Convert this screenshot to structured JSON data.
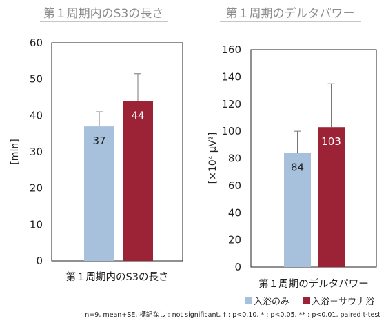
{
  "chart_data": [
    {
      "type": "bar",
      "title": "第１周期内のS3の長さ",
      "categories": [
        "第１周期内のS3の長さ"
      ],
      "ylabel": "[min]",
      "ylim": [
        0,
        60
      ],
      "yticks": [
        0,
        10,
        20,
        30,
        40,
        50,
        60
      ],
      "series": [
        {
          "name": "入浴のみ",
          "values": [
            37
          ],
          "error": [
            4
          ],
          "color": "#a7c0dc"
        },
        {
          "name": "入浴＋サウナ浴",
          "values": [
            44
          ],
          "error": [
            7.5
          ],
          "color": "#9b2335"
        }
      ],
      "data_labels": [
        "37",
        "44"
      ]
    },
    {
      "type": "bar",
      "title": "第１周期のデルタパワー",
      "categories": [
        "第１周期のデルタパワー"
      ],
      "ylabel": "[×10⁴ μV²]",
      "ylim": [
        0,
        160
      ],
      "yticks": [
        0,
        20,
        40,
        60,
        80,
        100,
        120,
        140,
        160
      ],
      "series": [
        {
          "name": "入浴のみ",
          "values": [
            84
          ],
          "error": [
            16
          ],
          "color": "#a7c0dc"
        },
        {
          "name": "入浴＋サウナ浴",
          "values": [
            103
          ],
          "error": [
            32
          ],
          "color": "#9b2335"
        }
      ],
      "data_labels": [
        "84",
        "103"
      ]
    }
  ],
  "legend": {
    "items": [
      {
        "label": "入浴のみ",
        "color": "#a7c0dc"
      },
      {
        "label": "入浴＋サウナ浴",
        "color": "#9b2335"
      }
    ]
  },
  "footnote": "n=9, mean+SE, 標記なし : not significant, † : p<0.10, * : p<0.05, ** : p<0.01, paired t-test"
}
